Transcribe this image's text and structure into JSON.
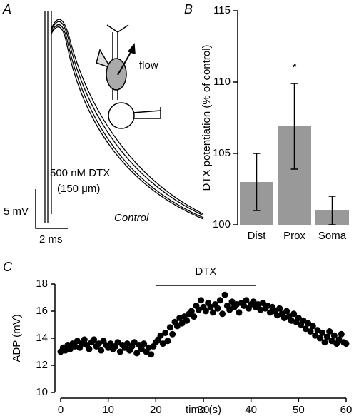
{
  "panel_a": {
    "label": "A",
    "drug_label": "500 nM DTX",
    "distance_label": "(150 μm)",
    "control_label": "Control",
    "scale_y_label": "5 mV",
    "scale_x_label": "2 ms",
    "diagram_label": "flow"
  },
  "chart_data": [
    {
      "type": "bar",
      "panel_label": "B",
      "ylabel": "DTX potentiation (% of control)",
      "categories": [
        "Dist",
        "Prox",
        "Soma"
      ],
      "values": [
        103,
        106.9,
        101
      ],
      "errors": [
        2,
        3,
        1
      ],
      "color": "#999999",
      "ylim": [
        100,
        115
      ],
      "yticks": [
        100,
        105,
        110,
        115
      ],
      "annotations": [
        {
          "category": "Prox",
          "text": "*"
        }
      ]
    },
    {
      "type": "scatter",
      "panel_label": "C",
      "xlabel": "time (s)",
      "ylabel": "ADP (mV)",
      "color": "#000000",
      "xlim": [
        0,
        60
      ],
      "xticks": [
        0,
        10,
        20,
        30,
        40,
        50,
        60
      ],
      "ylim": [
        10,
        18
      ],
      "yticks": [
        10,
        12,
        14,
        16,
        18
      ],
      "bar_label": "DTX",
      "bar_x": [
        20,
        41
      ],
      "x": [
        0,
        0.5,
        1,
        1.5,
        2,
        2.5,
        3,
        3.5,
        4,
        4.5,
        5,
        5.5,
        6,
        6.5,
        7,
        7.5,
        8,
        8.5,
        9,
        9.5,
        10,
        10.5,
        11,
        11.5,
        12,
        12.5,
        13,
        13.5,
        14,
        14.5,
        15,
        15.5,
        16,
        16.5,
        17,
        17.5,
        18,
        18.5,
        19,
        19.5,
        20,
        20.5,
        21,
        21.5,
        22,
        22.5,
        23,
        23.5,
        24,
        24.5,
        25,
        25.5,
        26,
        26.5,
        27,
        27.5,
        28,
        28.5,
        29,
        29.5,
        30,
        30.5,
        31,
        31.5,
        32,
        32.5,
        33,
        33.5,
        34,
        34.5,
        35,
        35.5,
        36,
        36.5,
        37,
        37.5,
        38,
        38.5,
        39,
        39.5,
        40,
        40.5,
        41,
        41.5,
        42,
        42.5,
        43,
        43.5,
        44,
        44.5,
        45,
        45.5,
        46,
        46.5,
        47,
        47.5,
        48,
        48.5,
        49,
        49.5,
        50,
        50.5,
        51,
        51.5,
        52,
        52.5,
        53,
        53.5,
        54,
        54.5,
        55,
        55.5,
        56,
        56.5,
        57,
        57.5,
        58,
        58.5,
        59,
        59.5,
        60
      ],
      "values": [
        13.0,
        13.3,
        13.1,
        13.5,
        13.2,
        13.6,
        13.4,
        13.8,
        13.3,
        13.6,
        13.9,
        13.5,
        13.2,
        13.7,
        13.9,
        13.4,
        13.6,
        13.1,
        13.8,
        13.5,
        13.3,
        13.6,
        13.2,
        13.4,
        13.7,
        13.0,
        13.5,
        13.3,
        13.6,
        13.1,
        13.4,
        13.7,
        12.9,
        13.5,
        13.2,
        13.6,
        13.0,
        13.3,
        12.8,
        13.4,
        13.7,
        13.9,
        14.2,
        13.6,
        14.4,
        13.8,
        14.8,
        14.3,
        15.2,
        14.9,
        15.5,
        15.1,
        15.6,
        15.3,
        15.8,
        16.0,
        15.6,
        16.4,
        16.1,
        16.8,
        16.3,
        16.0,
        16.6,
        16.3,
        15.9,
        16.5,
        16.2,
        16.8,
        15.8,
        17.2,
        16.4,
        16.1,
        16.7,
        16.3,
        16.5,
        15.9,
        16.6,
        16.4,
        16.8,
        16.2,
        16.5,
        16.7,
        16.3,
        16.5,
        16.1,
        16.6,
        16.2,
        16.4,
        15.9,
        16.3,
        16.0,
        15.7,
        16.2,
        15.8,
        15.5,
        16.0,
        15.6,
        15.3,
        15.8,
        15.2,
        15.5,
        15.0,
        15.3,
        14.7,
        15.1,
        14.5,
        14.9,
        14.2,
        14.6,
        14.0,
        14.4,
        13.7,
        14.1,
        14.5,
        13.8,
        14.2,
        13.6,
        13.9,
        14.3,
        13.7,
        13.6
      ]
    }
  ]
}
